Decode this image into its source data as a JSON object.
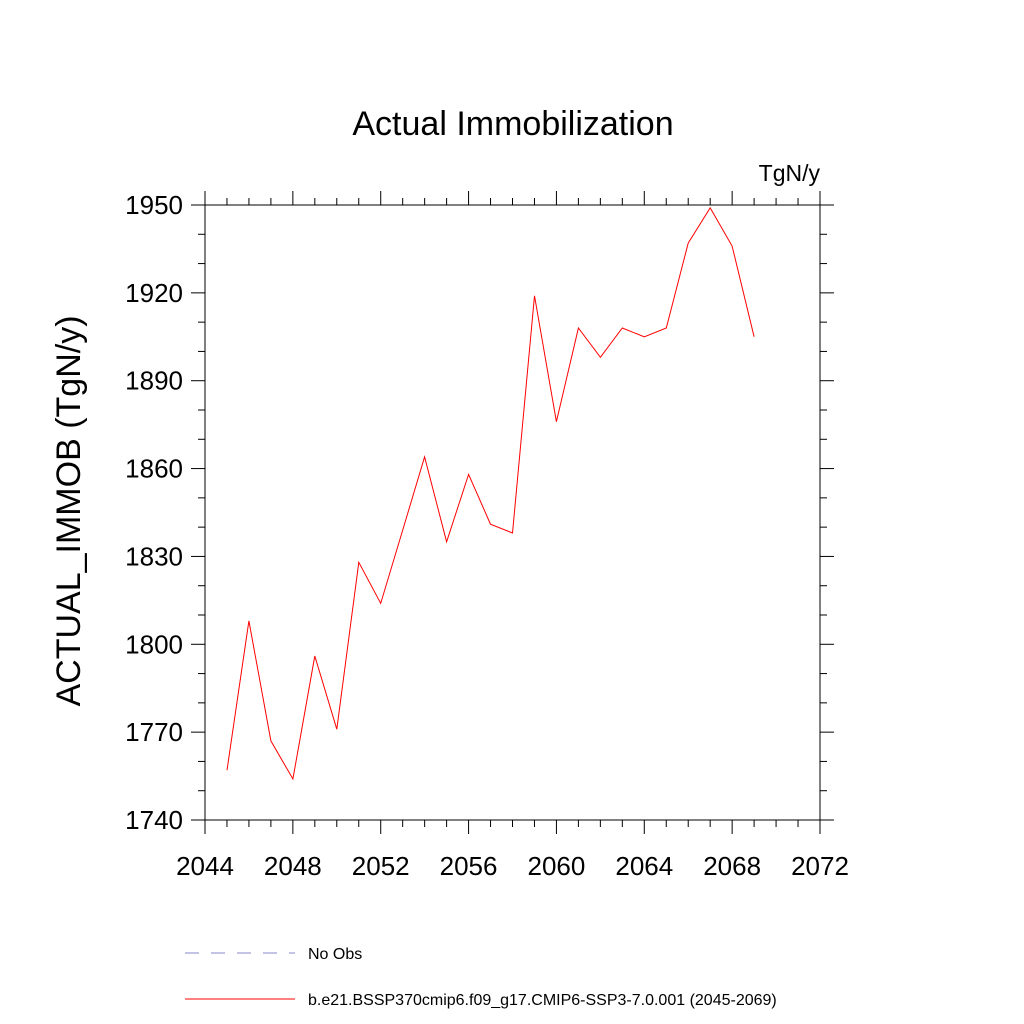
{
  "chart_data": {
    "type": "line",
    "title": "Actual Immobilization",
    "units": "TgN/y",
    "ylabel": "ACTUAL_IMMOB  (TgN/y)",
    "xlabel": "",
    "xlim": [
      2044,
      2072
    ],
    "ylim": [
      1740,
      1950
    ],
    "x_ticks": [
      2044,
      2048,
      2052,
      2056,
      2060,
      2064,
      2068,
      2072
    ],
    "y_ticks": [
      1740,
      1770,
      1800,
      1830,
      1860,
      1890,
      1920,
      1950
    ],
    "grid": false,
    "legend_position": "bottom",
    "series": [
      {
        "name": "b.e21.BSSP370cmip6.f09_g17.CMIP6-SSP3-7.0.001 (2045-2069)",
        "color": "#ff0000",
        "style": "solid",
        "x": [
          2045,
          2046,
          2047,
          2048,
          2049,
          2050,
          2051,
          2052,
          2053,
          2054,
          2055,
          2056,
          2057,
          2058,
          2059,
          2060,
          2061,
          2062,
          2063,
          2064,
          2065,
          2066,
          2067,
          2068,
          2069
        ],
        "y": [
          1757,
          1808,
          1767,
          1754,
          1796,
          1771,
          1828,
          1814,
          1839,
          1864,
          1835,
          1858,
          1841,
          1838,
          1919,
          1876,
          1908,
          1898,
          1908,
          1905,
          1908,
          1937,
          1949,
          1936,
          1905
        ]
      }
    ],
    "legend": [
      {
        "label": "No Obs",
        "color": "#8888cc",
        "style": "dashed"
      },
      {
        "label": "b.e21.BSSP370cmip6.f09_g17.CMIP6-SSP3-7.0.001 (2045-2069)",
        "color": "#ff0000",
        "style": "solid"
      }
    ]
  }
}
